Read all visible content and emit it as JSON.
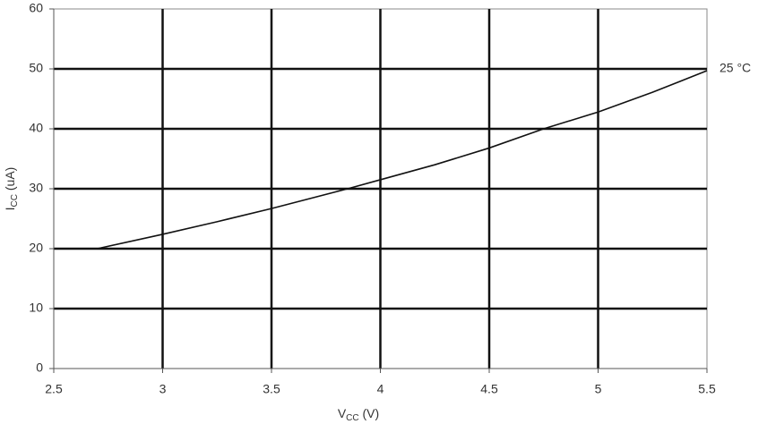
{
  "chart_data": {
    "type": "line",
    "xlabel": {
      "main": "V",
      "sub": "CC",
      "rest": " (V)"
    },
    "ylabel": {
      "main": "I",
      "sub": "CC",
      "rest": " (uA)"
    },
    "x": [
      2.7,
      3,
      3.25,
      3.5,
      3.85,
      4,
      4.25,
      4.5,
      4.75,
      5,
      5.25,
      5.5
    ],
    "series": [
      {
        "name": "25 °C",
        "color": "#111111",
        "values": [
          20,
          22.4,
          24.5,
          26.7,
          30,
          31.5,
          34,
          36.8,
          40,
          42.8,
          46.1,
          49.7
        ]
      }
    ],
    "xlim": [
      2.5,
      5.5
    ],
    "xticks": [
      2.5,
      3,
      3.5,
      4,
      4.5,
      5,
      5.5
    ],
    "ylim": [
      0,
      60
    ],
    "yticks": [
      0,
      10,
      20,
      30,
      40,
      50,
      60
    ],
    "grid": true
  }
}
